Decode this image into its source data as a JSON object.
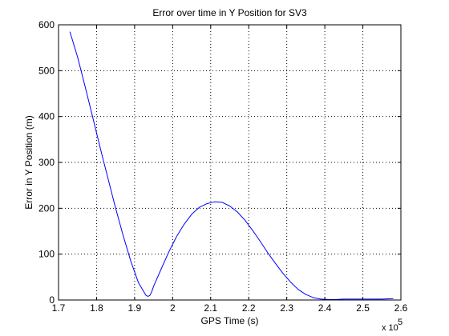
{
  "chart_data": {
    "type": "line",
    "title": "Error over time in Y Position for SV3",
    "xlabel": "GPS Time (s)",
    "ylabel": "Error in Y Position (m)",
    "x_multiplier_label": "x 10",
    "x_multiplier_exponent": "5",
    "xlim": [
      1.7,
      2.6
    ],
    "ylim": [
      0,
      600
    ],
    "xticks": [
      1.7,
      1.8,
      1.9,
      2.0,
      2.1,
      2.2,
      2.3,
      2.4,
      2.5,
      2.6
    ],
    "xtick_labels": [
      "1.7",
      "1.8",
      "1.9",
      "2",
      "2.1",
      "2.2",
      "2.3",
      "2.4",
      "2.5",
      "2.6"
    ],
    "yticks": [
      0,
      100,
      200,
      300,
      400,
      500,
      600
    ],
    "ytick_labels": [
      "0",
      "100",
      "200",
      "300",
      "400",
      "500",
      "600"
    ],
    "grid": true,
    "line_color": "#0000ff",
    "series": [
      {
        "x": [
          1.73,
          1.75,
          1.77,
          1.79,
          1.81,
          1.83,
          1.85,
          1.87,
          1.89,
          1.91,
          1.93,
          1.935,
          1.94,
          1.945,
          1.95,
          1.97,
          1.99,
          2.01,
          2.03,
          2.05,
          2.07,
          2.09,
          2.11,
          2.13,
          2.15,
          2.17,
          2.19,
          2.21,
          2.23,
          2.25,
          2.27,
          2.29,
          2.31,
          2.33,
          2.35,
          2.37,
          2.39,
          2.41,
          2.43,
          2.45,
          2.5,
          2.55,
          2.58
        ],
        "y": [
          585,
          530,
          465,
          398,
          330,
          265,
          200,
          140,
          85,
          38,
          10,
          8,
          10,
          18,
          30,
          68,
          105,
          138,
          165,
          187,
          202,
          210,
          214,
          213,
          205,
          192,
          174,
          152,
          128,
          103,
          80,
          58,
          39,
          23,
          12,
          5,
          2,
          1,
          1,
          2,
          2,
          2,
          3
        ]
      }
    ]
  }
}
